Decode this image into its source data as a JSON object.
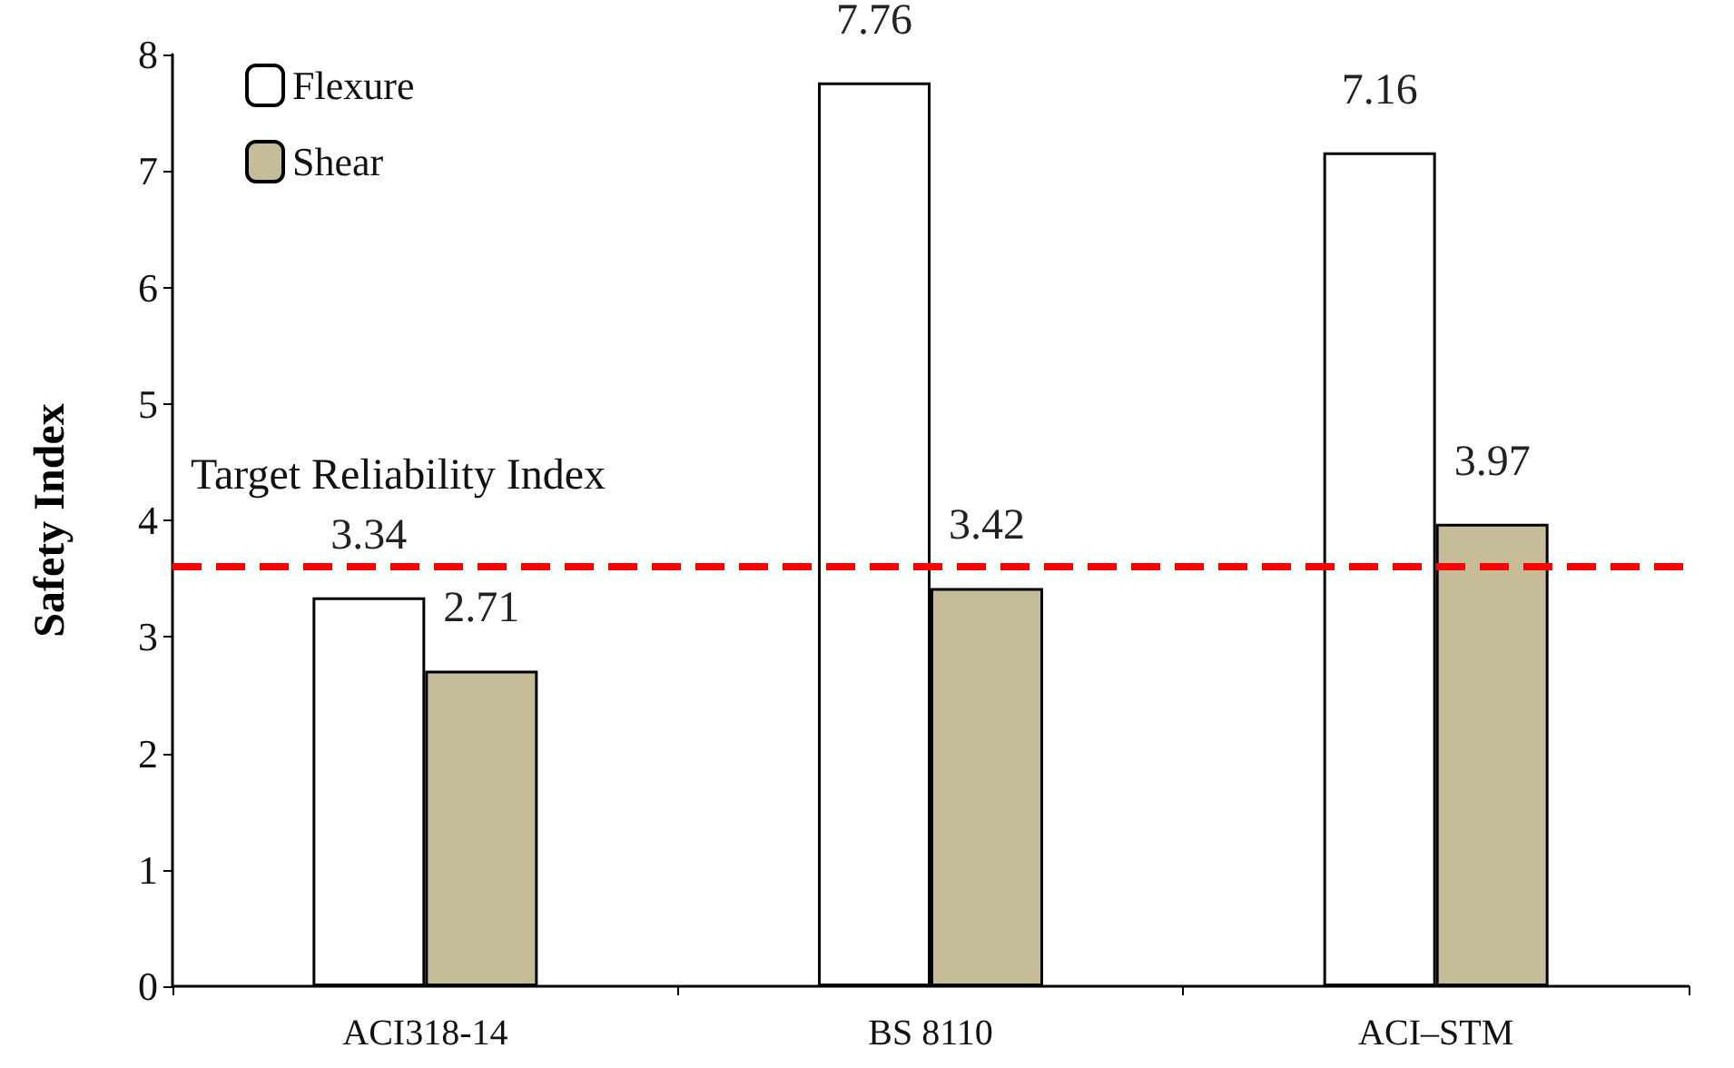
{
  "chart_data": {
    "type": "bar",
    "ylabel": "Safety Index",
    "categories": [
      "ACI318-14",
      "BS 8110",
      "ACI–STM"
    ],
    "series": [
      {
        "name": "Flexure",
        "color": "#ffffff",
        "values": [
          3.34,
          7.76,
          7.16
        ]
      },
      {
        "name": "Shear",
        "color": "#c6bc98",
        "values": [
          2.71,
          3.42,
          3.97
        ]
      }
    ],
    "ylim": [
      0,
      8
    ],
    "yticks": [
      0,
      1,
      2,
      3,
      4,
      5,
      6,
      7,
      8
    ],
    "ref_lines": [
      {
        "axis": "y",
        "value": 3.6,
        "label": "Target Reliability Index",
        "color": "#ff0000",
        "line_style": "dashed"
      }
    ],
    "data_labels": true,
    "grid": false,
    "legend": "top left"
  }
}
